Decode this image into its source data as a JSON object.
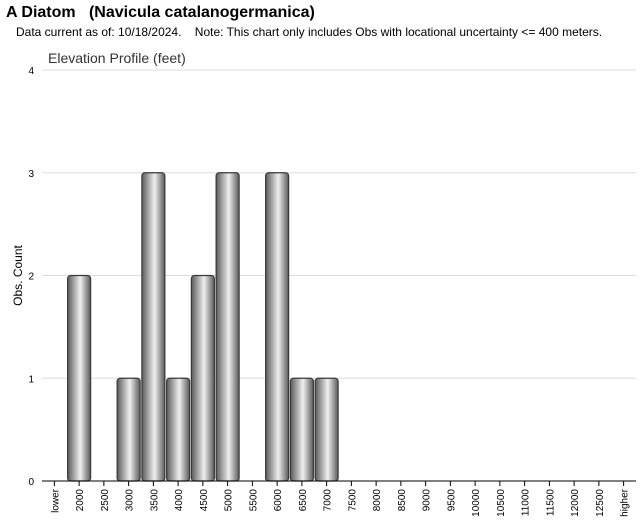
{
  "page": {
    "title": "A Diatom   (Navicula catalanogermanica)",
    "subtitle": "Data current as of: 10/18/2024.    Note: This chart only includes Obs with locational uncertainty <= 400 meters."
  },
  "chart_data": {
    "type": "bar",
    "title": "Elevation Profile (feet)",
    "xlabel": "",
    "ylabel": "Obs. Count",
    "ylim": [
      0,
      4
    ],
    "yticks": [
      0,
      1,
      2,
      3,
      4
    ],
    "grid": true,
    "categories": [
      "lower",
      "2000",
      "2500",
      "3000",
      "3500",
      "4000",
      "4500",
      "5000",
      "5500",
      "6000",
      "6500",
      "7000",
      "7500",
      "8000",
      "8500",
      "9000",
      "9500",
      "10000",
      "10500",
      "11000",
      "11500",
      "12000",
      "12500",
      "higher"
    ],
    "values": [
      0,
      2,
      0,
      1,
      3,
      1,
      2,
      3,
      0,
      3,
      1,
      1,
      0,
      0,
      0,
      0,
      0,
      0,
      0,
      0,
      0,
      0,
      0,
      0
    ],
    "colors": {
      "bar_dark": "#5a5a5a",
      "bar_light": "#f0f0f0",
      "bar_stroke": "#3a3a3a",
      "grid": "#dddddd",
      "axis": "#000000"
    }
  }
}
